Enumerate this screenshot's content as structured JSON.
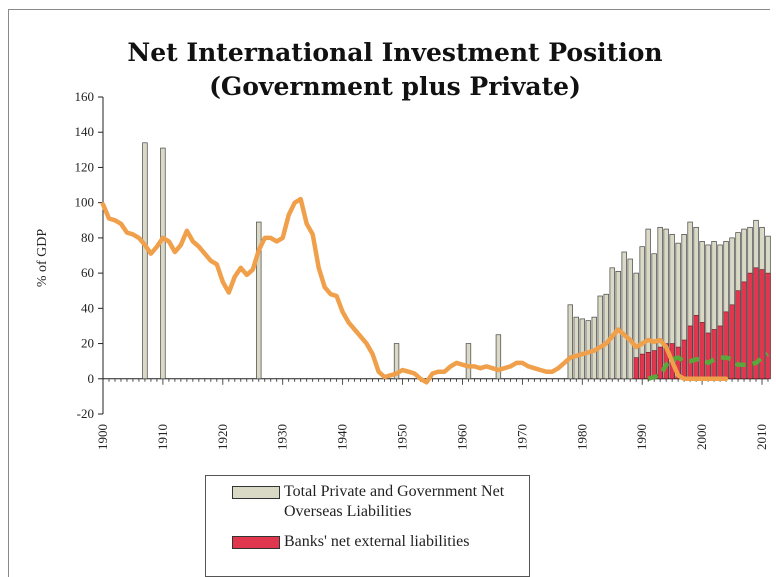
{
  "chart_data": {
    "type": "bar",
    "title_line1": "Net International Investment Position",
    "title_line2": "(Government plus Private)",
    "ylabel": "% of GDP",
    "xlabel": "",
    "ylim": [
      -20,
      160
    ],
    "yticks": [
      "-20",
      "0",
      "20",
      "40",
      "60",
      "80",
      "100",
      "120",
      "140",
      "160"
    ],
    "xlim": [
      1900,
      2011
    ],
    "xticks": [
      "1900",
      "1910",
      "1920",
      "1930",
      "1940",
      "1950",
      "1960",
      "1970",
      "1980",
      "1990",
      "2000",
      "2010"
    ],
    "legend": [
      "Total Private and Government Net Overseas Liabilities",
      "Banks' net external liabilities"
    ],
    "colors": {
      "total_bar": "#d9d9c6",
      "bank_bar": "#e0364e",
      "orange_line": "#f0a04a",
      "green_dash": "#5aa83c",
      "axis": "#222222"
    },
    "series": [
      {
        "name": "Total Private and Government Net Overseas Liabilities",
        "kind": "bar",
        "x": [
          1907,
          1910,
          1926,
          1949,
          1961,
          1966,
          1978,
          1979,
          1980,
          1981,
          1982,
          1983,
          1984,
          1985,
          1986,
          1987,
          1988,
          1989,
          1990,
          1991,
          1992,
          1993,
          1994,
          1995,
          1996,
          1997,
          1998,
          1999,
          2000,
          2001,
          2002,
          2003,
          2004,
          2005,
          2006,
          2007,
          2008,
          2009,
          2010,
          2011
        ],
        "values": [
          134,
          131,
          89,
          20,
          20,
          25,
          42,
          35,
          34,
          33,
          35,
          47,
          48,
          63,
          61,
          72,
          68,
          60,
          75,
          85,
          71,
          86,
          85,
          82,
          77,
          82,
          89,
          86,
          78,
          76,
          78,
          76,
          78,
          80,
          83,
          85,
          86,
          90,
          86,
          81
        ]
      },
      {
        "name": "Banks' net external liabilities",
        "kind": "bar",
        "x": [
          1989,
          1990,
          1991,
          1992,
          1993,
          1994,
          1995,
          1996,
          1997,
          1998,
          1999,
          2000,
          2001,
          2002,
          2003,
          2004,
          2005,
          2006,
          2007,
          2008,
          2009,
          2010,
          2011
        ],
        "values": [
          12,
          14,
          15,
          16,
          18,
          20,
          20,
          18,
          22,
          30,
          36,
          32,
          26,
          28,
          30,
          38,
          42,
          50,
          55,
          60,
          63,
          62,
          60
        ]
      },
      {
        "kind": "line",
        "x": [
          1900,
          1901,
          1902,
          1903,
          1904,
          1905,
          1906,
          1907,
          1908,
          1909,
          1910,
          1911,
          1912,
          1913,
          1914,
          1915,
          1916,
          1917,
          1918,
          1919,
          1920,
          1921,
          1922,
          1923,
          1924,
          1925,
          1926,
          1927,
          1928,
          1929,
          1930,
          1931,
          1932,
          1933,
          1934,
          1935,
          1936,
          1937,
          1938,
          1939,
          1940,
          1941,
          1942,
          1943,
          1944,
          1945,
          1946,
          1947,
          1948,
          1949,
          1950,
          1951,
          1952,
          1953,
          1954,
          1955,
          1956,
          1957,
          1958,
          1959,
          1960,
          1961,
          1962,
          1963,
          1964,
          1965,
          1966,
          1967,
          1968,
          1969,
          1970,
          1971,
          1972,
          1973,
          1974,
          1975,
          1976,
          1977,
          1978,
          1979,
          1980,
          1981,
          1982,
          1983,
          1984,
          1985,
          1986,
          1987,
          1988,
          1989,
          1990,
          1991,
          1992,
          1993,
          1994,
          1995,
          1996,
          1997,
          1998,
          1999,
          2000,
          2001,
          2002,
          2003,
          2004
        ],
        "values": [
          99,
          91,
          90,
          88,
          83,
          82,
          80,
          76,
          71,
          75,
          80,
          78,
          72,
          76,
          84,
          78,
          75,
          71,
          67,
          65,
          55,
          49,
          58,
          63,
          59,
          62,
          73,
          80,
          80,
          78,
          80,
          93,
          100,
          102,
          88,
          82,
          63,
          52,
          48,
          47,
          38,
          32,
          28,
          24,
          20,
          14,
          4,
          1,
          2,
          3,
          5,
          4,
          3,
          0,
          -2,
          3,
          4,
          4,
          7,
          9,
          8,
          7,
          7,
          6,
          7,
          6,
          5,
          6,
          7,
          9,
          9,
          7,
          6,
          5,
          4,
          4,
          6,
          9,
          12,
          13,
          14,
          15,
          16,
          18,
          20,
          24,
          28,
          25,
          22,
          18,
          20,
          22,
          21,
          22,
          18,
          10,
          2,
          0,
          0,
          0,
          0,
          0,
          0,
          0,
          0
        ]
      },
      {
        "kind": "dashed-line",
        "x": [
          1991,
          1992,
          1993,
          1994,
          1995,
          1996,
          1997,
          1998,
          1999,
          2000,
          2001,
          2002,
          2003,
          2004,
          2005,
          2006,
          2007,
          2008,
          2009,
          2010,
          2011
        ],
        "values": [
          0,
          1,
          2,
          8,
          11,
          12,
          10,
          10,
          11,
          11,
          9,
          11,
          12,
          12,
          11,
          8,
          8,
          8,
          9,
          12,
          14
        ]
      }
    ]
  }
}
